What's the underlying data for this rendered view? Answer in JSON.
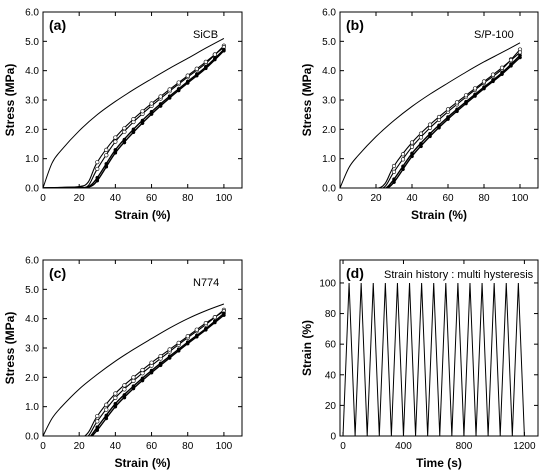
{
  "chart_data": [
    {
      "type": "line",
      "panel": "(a)",
      "annotation": "SiCB",
      "xlabel": "Strain (%)",
      "ylabel": "Stress (MPa)",
      "xlim": [
        0,
        110
      ],
      "ylim": [
        0,
        6.0
      ],
      "xticks": [
        "0",
        "20",
        "40",
        "60",
        "80",
        "100"
      ],
      "yticks": [
        "0.0",
        "1.0",
        "2.0",
        "3.0",
        "4.0",
        "5.0",
        "6.0"
      ],
      "loading_first": {
        "x": [
          0,
          5,
          10,
          20,
          30,
          40,
          50,
          60,
          70,
          80,
          90,
          100
        ],
        "y": [
          0,
          0.85,
          1.28,
          1.95,
          2.5,
          2.95,
          3.35,
          3.72,
          4.08,
          4.42,
          4.77,
          5.1
        ]
      },
      "cycle_curves": [
        {
          "x": [
            0,
            10,
            20,
            25,
            30,
            40,
            50,
            60,
            70,
            80,
            90,
            100
          ],
          "y": [
            0,
            0.02,
            0.03,
            0.08,
            0.65,
            1.58,
            2.25,
            2.8,
            3.3,
            3.78,
            4.25,
            4.85
          ]
        },
        {
          "x": [
            0,
            10,
            20,
            25,
            30,
            40,
            50,
            60,
            70,
            80,
            90,
            100
          ],
          "y": [
            0,
            0.02,
            0.05,
            0.2,
            0.88,
            1.72,
            2.35,
            2.88,
            3.36,
            3.83,
            4.3,
            4.8
          ]
        },
        {
          "x": [
            0,
            10,
            20,
            25,
            30,
            40,
            50,
            60,
            70,
            80,
            90,
            100
          ],
          "y": [
            0,
            0.01,
            0.02,
            0.04,
            0.35,
            1.3,
            2.0,
            2.6,
            3.13,
            3.63,
            4.13,
            4.72
          ]
        },
        {
          "x": [
            0,
            10,
            20,
            25,
            30,
            40,
            50,
            60,
            70,
            80,
            90,
            100
          ],
          "y": [
            0,
            0.01,
            0.02,
            0.03,
            0.25,
            1.2,
            1.9,
            2.52,
            3.07,
            3.58,
            4.08,
            4.68
          ]
        }
      ],
      "markers_x": [
        30,
        35,
        40,
        45,
        50,
        55,
        60,
        65,
        70,
        75,
        80,
        85,
        90,
        95,
        100
      ]
    },
    {
      "type": "line",
      "panel": "(b)",
      "annotation": "S/P-100",
      "xlabel": "Strain (%)",
      "ylabel": "Stress (MPa)",
      "xlim": [
        0,
        110
      ],
      "ylim": [
        0,
        6.0
      ],
      "xticks": [
        "0",
        "20",
        "40",
        "60",
        "80",
        "100"
      ],
      "yticks": [
        "0.0",
        "1.0",
        "2.0",
        "3.0",
        "4.0",
        "5.0",
        "6.0"
      ],
      "loading_first": {
        "x": [
          0,
          5,
          10,
          20,
          30,
          40,
          50,
          60,
          70,
          80,
          90,
          100
        ],
        "y": [
          0,
          0.7,
          1.1,
          1.75,
          2.3,
          2.78,
          3.2,
          3.58,
          3.95,
          4.3,
          4.62,
          4.95
        ]
      },
      "cycle_curves": [
        {
          "x": [
            0,
            10,
            20,
            25,
            30,
            40,
            50,
            60,
            70,
            80,
            90,
            100
          ],
          "y": [
            -0.05,
            -0.04,
            -0.03,
            0.05,
            0.55,
            1.4,
            2.05,
            2.6,
            3.1,
            3.58,
            4.05,
            4.72
          ]
        },
        {
          "x": [
            0,
            10,
            20,
            25,
            30,
            40,
            50,
            60,
            70,
            80,
            90,
            100
          ],
          "y": [
            -0.05,
            -0.04,
            -0.02,
            0.15,
            0.75,
            1.55,
            2.16,
            2.68,
            3.16,
            3.63,
            4.1,
            4.62
          ]
        },
        {
          "x": [
            0,
            10,
            20,
            25,
            30,
            40,
            50,
            60,
            70,
            80,
            90,
            100
          ],
          "y": [
            -0.05,
            -0.04,
            -0.04,
            -0.02,
            0.3,
            1.18,
            1.85,
            2.42,
            2.94,
            3.44,
            3.93,
            4.52
          ]
        },
        {
          "x": [
            0,
            10,
            20,
            25,
            30,
            40,
            50,
            60,
            70,
            80,
            90,
            100
          ],
          "y": [
            -0.05,
            -0.04,
            -0.04,
            -0.03,
            0.2,
            1.08,
            1.76,
            2.35,
            2.88,
            3.39,
            3.88,
            4.45
          ]
        }
      ],
      "markers_x": [
        30,
        35,
        40,
        45,
        50,
        55,
        60,
        65,
        70,
        75,
        80,
        85,
        90,
        95,
        100
      ]
    },
    {
      "type": "line",
      "panel": "(c)",
      "annotation": "N774",
      "xlabel": "Strain (%)",
      "ylabel": "Stress (MPa)",
      "xlim": [
        0,
        110
      ],
      "ylim": [
        0,
        6.0
      ],
      "xticks": [
        "0",
        "20",
        "40",
        "60",
        "80",
        "100"
      ],
      "yticks": [
        "0.0",
        "1.0",
        "2.0",
        "3.0",
        "4.0",
        "5.0",
        "6.0"
      ],
      "loading_first": {
        "x": [
          0,
          5,
          10,
          20,
          30,
          40,
          50,
          60,
          70,
          80,
          90,
          100
        ],
        "y": [
          0,
          0.6,
          0.98,
          1.6,
          2.1,
          2.55,
          2.95,
          3.32,
          3.68,
          4.0,
          4.27,
          4.5
        ]
      },
      "cycle_curves": [
        {
          "x": [
            0,
            10,
            20,
            25,
            30,
            40,
            50,
            60,
            70,
            80,
            90,
            100
          ],
          "y": [
            -0.12,
            -0.12,
            -0.1,
            0.0,
            0.5,
            1.3,
            1.88,
            2.4,
            2.88,
            3.35,
            3.8,
            4.3
          ]
        },
        {
          "x": [
            0,
            10,
            20,
            25,
            30,
            40,
            50,
            60,
            70,
            80,
            90,
            100
          ],
          "y": [
            -0.12,
            -0.12,
            -0.08,
            0.12,
            0.68,
            1.45,
            2.0,
            2.5,
            2.95,
            3.4,
            3.85,
            4.25
          ]
        },
        {
          "x": [
            0,
            10,
            20,
            25,
            30,
            40,
            50,
            60,
            70,
            80,
            90,
            100
          ],
          "y": [
            -0.12,
            -0.12,
            -0.11,
            -0.08,
            0.3,
            1.1,
            1.7,
            2.23,
            2.72,
            3.2,
            3.66,
            4.18
          ]
        },
        {
          "x": [
            0,
            10,
            20,
            25,
            30,
            40,
            50,
            60,
            70,
            80,
            90,
            100
          ],
          "y": [
            -0.12,
            -0.12,
            -0.12,
            -0.1,
            0.2,
            1.0,
            1.62,
            2.16,
            2.66,
            3.15,
            3.62,
            4.12
          ]
        }
      ],
      "markers_x": [
        30,
        35,
        40,
        45,
        50,
        55,
        60,
        65,
        70,
        75,
        80,
        85,
        90,
        95,
        100
      ]
    },
    {
      "type": "line",
      "panel": "(d)",
      "annotation": "Strain history : multi hysteresis",
      "xlabel": "Time (s)",
      "ylabel": "Strain (%)",
      "xlim": [
        -20,
        1290
      ],
      "ylim": [
        0,
        115
      ],
      "xticks": [
        "0",
        "400",
        "800",
        "1200"
      ],
      "yticks": [
        "0",
        "20",
        "40",
        "60",
        "80",
        "100"
      ],
      "triangle_wave": {
        "start_time": 0,
        "cycles": 15,
        "period": 80,
        "min": 0,
        "max": 100
      }
    }
  ]
}
